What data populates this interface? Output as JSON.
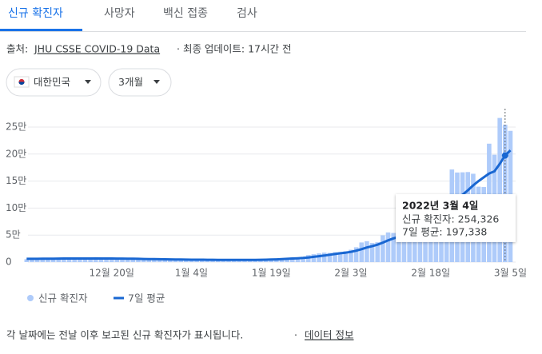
{
  "tabs": [
    "신규 확진자",
    "사망자",
    "백신 접종",
    "검사"
  ],
  "source": {
    "label": "출처:",
    "link": "JHU CSSE COVID-19 Data",
    "updated": "· 최종 업데이트: 17시간 전"
  },
  "filters": {
    "region": "대한민국",
    "period": "3개월"
  },
  "footer": {
    "note": "각 날짜에는 전날 이후 보고된 신규 확진자가 표시됩니다.",
    "separator": "·",
    "link": "데이터 정보"
  },
  "chart_data": {
    "type": "bar_line",
    "categories": [
      null,
      null,
      null,
      null,
      null,
      null,
      null,
      null,
      null,
      null,
      null,
      null,
      null,
      null,
      null,
      null,
      "12월 20일",
      null,
      null,
      null,
      null,
      null,
      null,
      null,
      null,
      null,
      null,
      null,
      null,
      null,
      null,
      "1월 4일",
      null,
      null,
      null,
      null,
      null,
      null,
      null,
      null,
      null,
      null,
      null,
      null,
      null,
      null,
      "1월 19일",
      null,
      null,
      null,
      null,
      null,
      null,
      null,
      null,
      null,
      null,
      null,
      null,
      null,
      null,
      "2월 3일",
      null,
      null,
      null,
      null,
      null,
      null,
      null,
      null,
      null,
      null,
      null,
      null,
      null,
      null,
      "2월 18일",
      null,
      null,
      null,
      null,
      null,
      null,
      null,
      null,
      null,
      null,
      null,
      null,
      null,
      null,
      "3월 5일"
    ],
    "series": [
      {
        "name": "신규 확진자",
        "color": "#aecbfa",
        "values": [
          5352,
          5128,
          4325,
          7175,
          7102,
          7022,
          7102,
          6977,
          6689,
          5817,
          5567,
          7850,
          7622,
          7435,
          6236,
          5318,
          7456,
          7455,
          6919,
          6233,
          5842,
          5419,
          4207,
          5202,
          5037,
          4875,
          5409,
          4416,
          4122,
          3831,
          3128,
          4444,
          4126,
          4953,
          4443,
          4383,
          3376,
          3005,
          4388,
          4167,
          4541,
          4422,
          4195,
          3858,
          4071,
          5805,
          6603,
          6769,
          7009,
          7630,
          8571,
          7513,
          8571,
          13012,
          14518,
          16096,
          17542,
          17079,
          18341,
          18342,
          20270,
          22907,
          27443,
          36362,
          38691,
          35286,
          36719,
          49567,
          54941,
          53926,
          54122,
          56431,
          54619,
          57177,
          90443,
          93135,
          109831,
          102211,
          104829,
          95362,
          171452,
          165890,
          166209,
          166722,
          163565,
          139626,
          138993,
          219241,
          198803,
          266853,
          254326,
          243000
        ]
      },
      {
        "name": "7일 평균",
        "color": "#1967d2",
        "values": [
          6000,
          6000,
          6050,
          6200,
          6300,
          6400,
          6500,
          6600,
          6650,
          6700,
          6700,
          6650,
          6700,
          6750,
          6700,
          6600,
          6600,
          6500,
          6450,
          6300,
          6200,
          6000,
          5800,
          5600,
          5500,
          5350,
          5200,
          5000,
          4850,
          4700,
          4550,
          4500,
          4400,
          4400,
          4300,
          4250,
          4200,
          4100,
          4000,
          4000,
          4050,
          4100,
          4150,
          4200,
          4250,
          4500,
          4800,
          5100,
          5500,
          6000,
          6600,
          7100,
          7700,
          8600,
          9700,
          10900,
          12200,
          13600,
          15000,
          16400,
          17500,
          19000,
          21200,
          24000,
          27000,
          29400,
          32300,
          36100,
          40300,
          43900,
          46800,
          50300,
          52700,
          55000,
          60000,
          65600,
          73700,
          80800,
          88000,
          94100,
          105000,
          115000,
          124500,
          133000,
          142000,
          150000,
          157000,
          164000,
          168000,
          182000,
          197338,
          207000
        ],
        "axis": "y"
      }
    ],
    "ylim": [
      0,
      250000
    ],
    "yticks": [
      0,
      {
        "value": 50000,
        "label": "5만"
      },
      {
        "value": 100000,
        "label": "10만"
      },
      {
        "value": 150000,
        "label": "15만"
      },
      {
        "value": 200000,
        "label": "20만"
      },
      {
        "value": 250000,
        "label": "25만"
      }
    ],
    "grid": true,
    "legend": "bottom-left",
    "tooltip": {
      "date": "2022년 3월 4일",
      "cases": "신규 확진자: 254,326",
      "average": "7일 평균: 197,338"
    }
  }
}
